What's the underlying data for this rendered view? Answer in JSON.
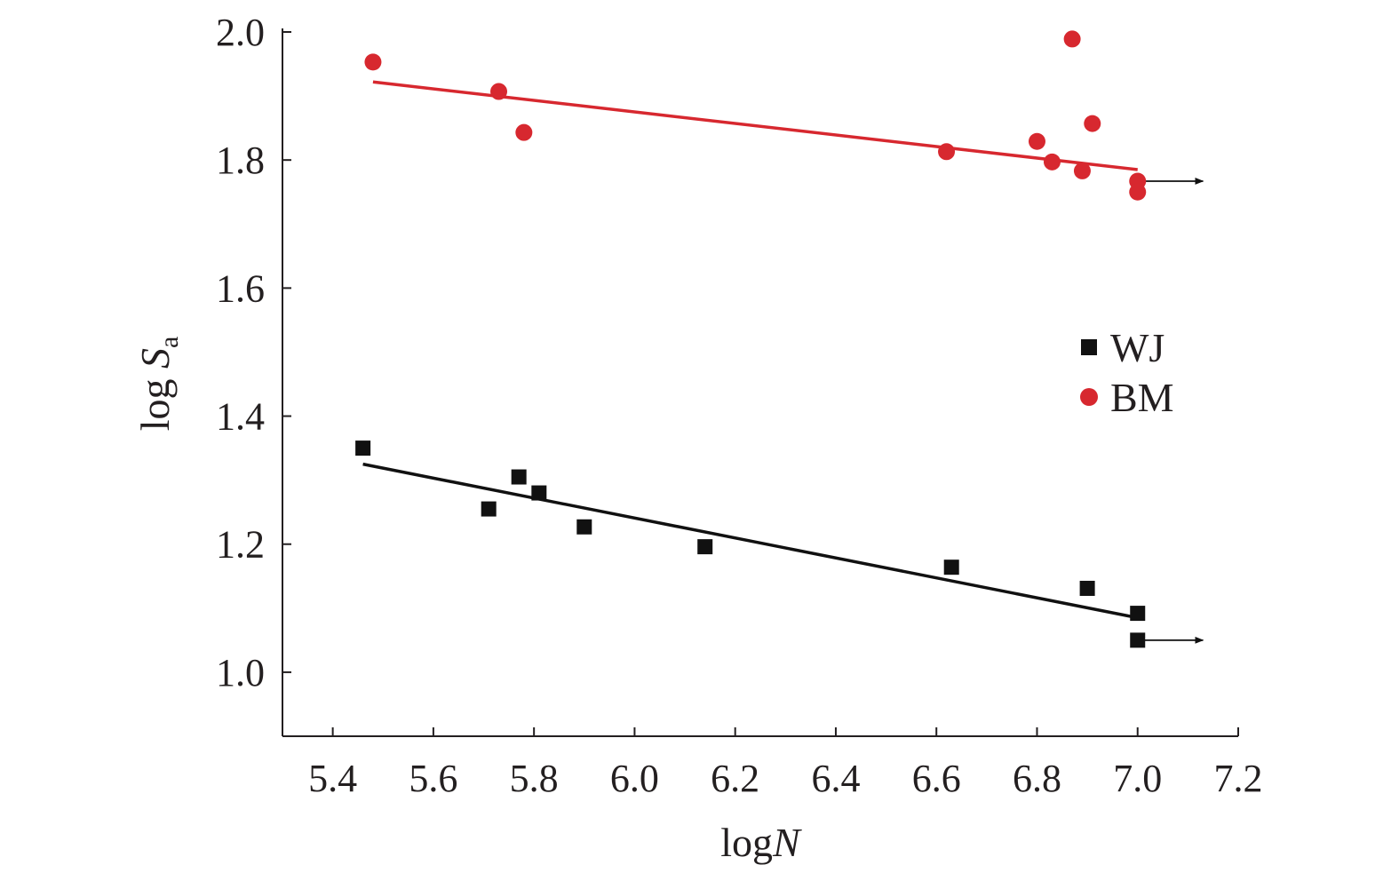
{
  "chart_data": {
    "type": "scatter",
    "title": "",
    "xlabel": {
      "prefix": "log",
      "italic": "N"
    },
    "ylabel": {
      "prefix": "log",
      "italic": "S",
      "subscript": "a"
    },
    "xlim": [
      5.3,
      7.2
    ],
    "ylim": [
      0.9,
      2.0
    ],
    "xticks": [
      "5.4",
      "5.6",
      "5.8",
      "6.0",
      "6.2",
      "6.4",
      "6.6",
      "6.8",
      "7.0",
      "7.2"
    ],
    "yticks": [
      "1.0",
      "1.2",
      "1.4",
      "1.6",
      "1.8",
      "2.0"
    ],
    "grid": false,
    "legend": "right-center",
    "series": [
      {
        "name": "WJ",
        "marker": "square",
        "color": "#111111",
        "points": [
          [
            5.46,
            1.35
          ],
          [
            5.71,
            1.255
          ],
          [
            5.77,
            1.305
          ],
          [
            5.81,
            1.28
          ],
          [
            5.9,
            1.227
          ],
          [
            6.14,
            1.196
          ],
          [
            6.63,
            1.164
          ],
          [
            6.9,
            1.131
          ],
          [
            7.0,
            1.092
          ],
          [
            7.0,
            1.05
          ]
        ],
        "fit": [
          [
            5.46,
            1.325
          ],
          [
            7.0,
            1.085
          ]
        ],
        "runout": {
          "from": [
            7.0,
            1.05
          ],
          "to": [
            7.13,
            1.05
          ]
        }
      },
      {
        "name": "BM",
        "marker": "circle",
        "color": "#d7282f",
        "points": [
          [
            5.48,
            1.953
          ],
          [
            5.73,
            1.907
          ],
          [
            5.78,
            1.843
          ],
          [
            6.62,
            1.813
          ],
          [
            6.8,
            1.829
          ],
          [
            6.83,
            1.797
          ],
          [
            6.87,
            1.989
          ],
          [
            6.89,
            1.783
          ],
          [
            6.91,
            1.857
          ],
          [
            7.0,
            1.767
          ],
          [
            7.0,
            1.75
          ]
        ],
        "fit": [
          [
            5.48,
            1.922
          ],
          [
            7.0,
            1.785
          ]
        ],
        "runout": {
          "from": [
            7.0,
            1.767
          ],
          "to": [
            7.13,
            1.767
          ]
        }
      }
    ]
  }
}
